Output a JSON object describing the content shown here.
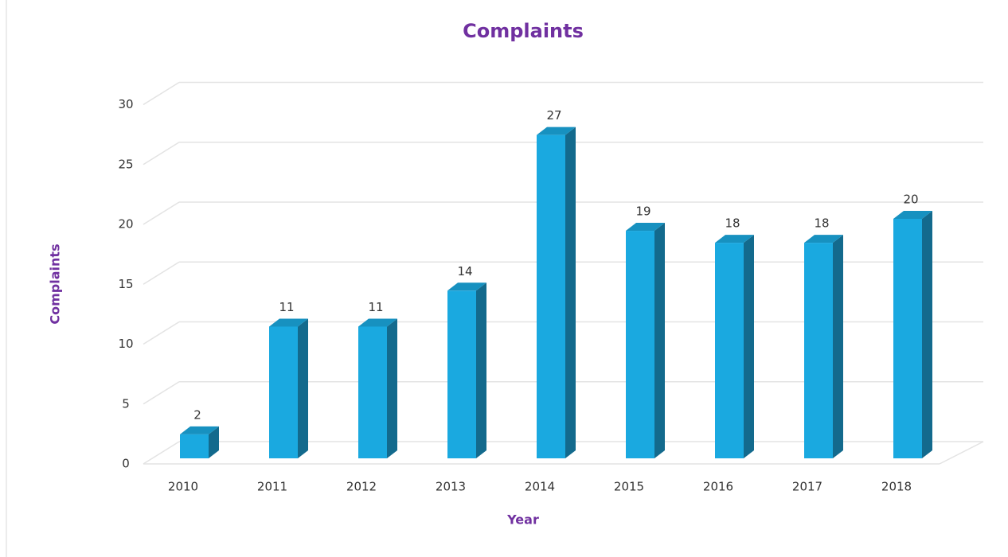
{
  "chart_data": {
    "type": "bar3d",
    "title": "Complaints",
    "x_label": "Year",
    "y_label": "Complaints",
    "categories": [
      "2010",
      "2011",
      "2012",
      "2013",
      "2014",
      "2015",
      "2016",
      "2017",
      "2018"
    ],
    "values": [
      2,
      11,
      11,
      14,
      27,
      19,
      18,
      18,
      20
    ],
    "color": "#1aa9e0",
    "ylim": [
      0,
      30
    ],
    "yticks": [
      0,
      5,
      10,
      15,
      20,
      25,
      30
    ],
    "grid": true
  }
}
